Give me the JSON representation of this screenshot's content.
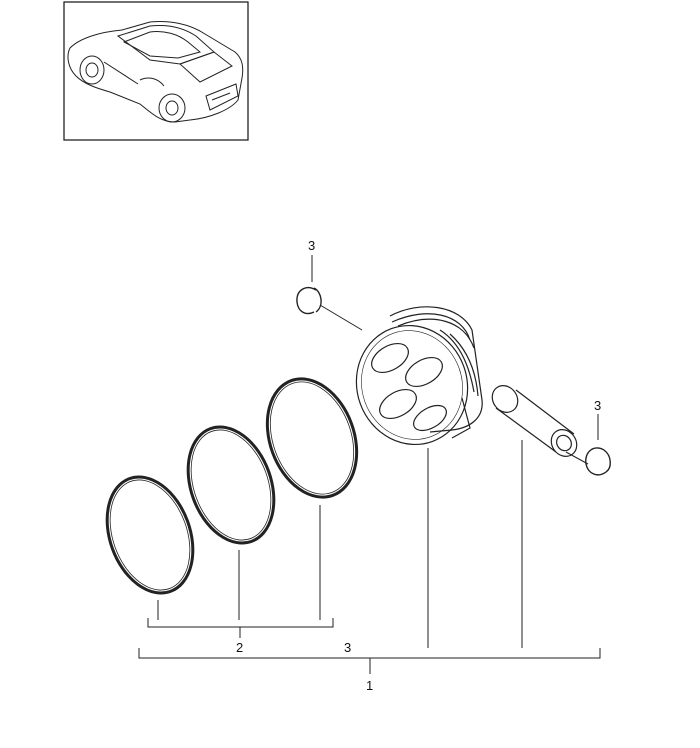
{
  "callouts": {
    "circlip_top": "3",
    "circlip_right": "3",
    "ring_set": "2",
    "piston_group": "3",
    "assembly": "1"
  },
  "icons": [
    "car-thumbnail-icon",
    "piston-icon",
    "piston-ring-icon",
    "piston-pin-icon",
    "circlip-icon"
  ],
  "colors": {
    "line": "#222222",
    "background": "#ffffff"
  }
}
